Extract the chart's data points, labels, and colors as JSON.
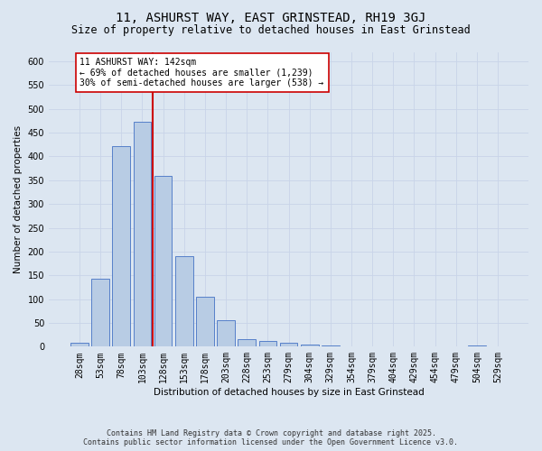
{
  "title_line1": "11, ASHURST WAY, EAST GRINSTEAD, RH19 3GJ",
  "title_line2": "Size of property relative to detached houses in East Grinstead",
  "xlabel": "Distribution of detached houses by size in East Grinstead",
  "ylabel": "Number of detached properties",
  "categories": [
    "28sqm",
    "53sqm",
    "78sqm",
    "103sqm",
    "128sqm",
    "153sqm",
    "178sqm",
    "203sqm",
    "228sqm",
    "253sqm",
    "279sqm",
    "304sqm",
    "329sqm",
    "354sqm",
    "379sqm",
    "404sqm",
    "429sqm",
    "454sqm",
    "479sqm",
    "504sqm",
    "529sqm"
  ],
  "bar_values": [
    8,
    143,
    422,
    473,
    360,
    190,
    105,
    55,
    15,
    12,
    8,
    4,
    2,
    1,
    1,
    0,
    0,
    0,
    0,
    2,
    0
  ],
  "bar_color": "#b8cce4",
  "bar_edge_color": "#4472c4",
  "grid_color": "#c8d4e8",
  "background_color": "#dce6f1",
  "vline_color": "#cc0000",
  "annotation_text": "11 ASHURST WAY: 142sqm\n← 69% of detached houses are smaller (1,239)\n30% of semi-detached houses are larger (538) →",
  "annotation_box_color": "#ffffff",
  "annotation_box_edge": "#cc0000",
  "ylim": [
    0,
    620
  ],
  "yticks": [
    0,
    50,
    100,
    150,
    200,
    250,
    300,
    350,
    400,
    450,
    500,
    550,
    600
  ],
  "footer_line1": "Contains HM Land Registry data © Crown copyright and database right 2025.",
  "footer_line2": "Contains public sector information licensed under the Open Government Licence v3.0.",
  "title_fontsize": 10,
  "subtitle_fontsize": 8.5,
  "axis_label_fontsize": 7.5,
  "tick_fontsize": 7,
  "annotation_fontsize": 7,
  "footer_fontsize": 6
}
